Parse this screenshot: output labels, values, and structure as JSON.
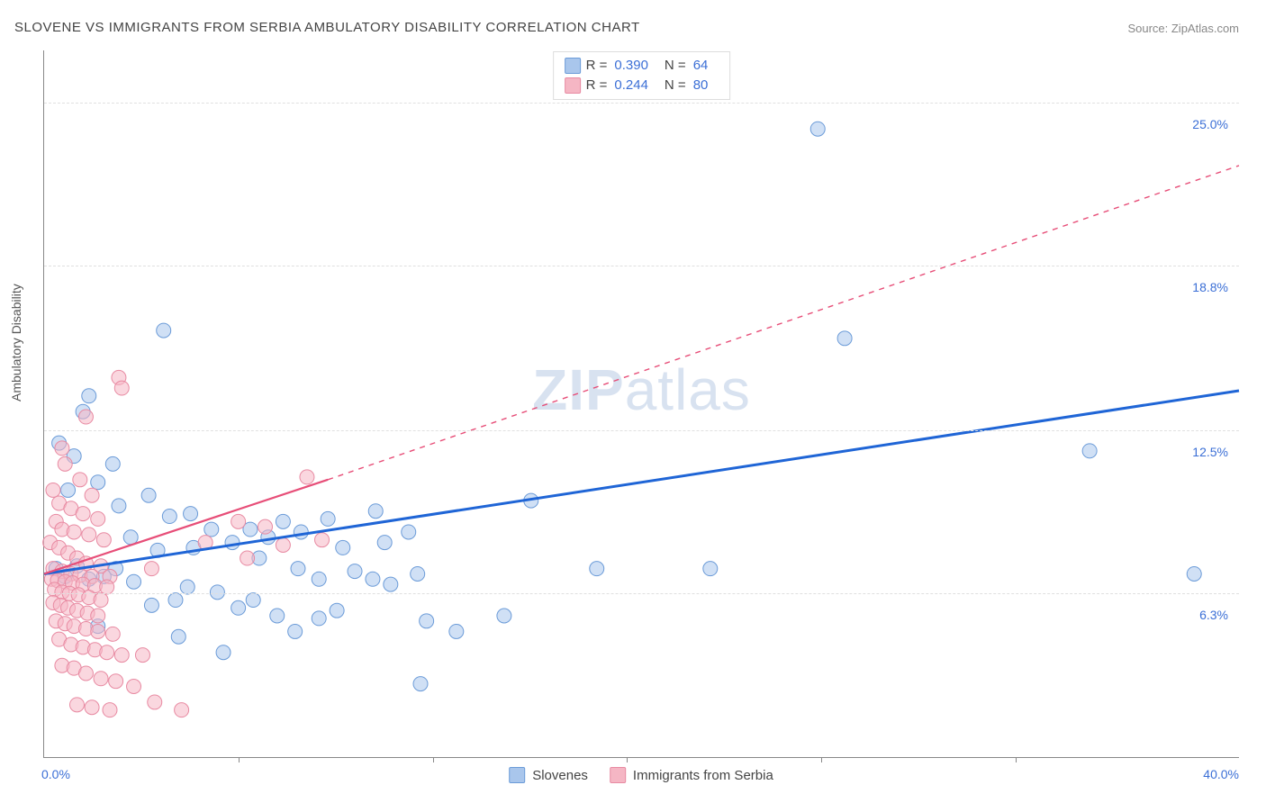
{
  "title": "SLOVENE VS IMMIGRANTS FROM SERBIA AMBULATORY DISABILITY CORRELATION CHART",
  "source": "Source: ZipAtlas.com",
  "y_axis_label": "Ambulatory Disability",
  "watermark_bold": "ZIP",
  "watermark_rest": "atlas",
  "chart": {
    "type": "scatter",
    "xlim": [
      0,
      40
    ],
    "ylim": [
      0,
      27
    ],
    "yticks": [
      {
        "val": 6.3,
        "label": "6.3%"
      },
      {
        "val": 12.5,
        "label": "12.5%"
      },
      {
        "val": 18.8,
        "label": "18.8%"
      },
      {
        "val": 25.0,
        "label": "25.0%"
      }
    ],
    "xticks_minor": [
      6.5,
      13,
      19.5,
      26,
      32.5
    ],
    "xtick_left": "0.0%",
    "xtick_right": "40.0%",
    "grid_color": "#e0e0e0",
    "axis_color": "#888888",
    "background_color": "#ffffff",
    "tick_label_color": "#3b6fd6",
    "marker_radius": 8,
    "marker_opacity": 0.55,
    "series": [
      {
        "name": "Slovenes",
        "fill": "#a9c6ec",
        "stroke": "#6b9bd8",
        "line_color": "#1f65d6",
        "line_width": 3,
        "line_dash": "none",
        "regression": {
          "x1": 0,
          "y1": 7.0,
          "x2": 40,
          "y2": 14.0
        },
        "extrapolate": null,
        "R": "0.390",
        "N": "64",
        "points": [
          [
            25.9,
            24.0
          ],
          [
            26.8,
            16.0
          ],
          [
            35.0,
            11.7
          ],
          [
            16.3,
            9.8
          ],
          [
            4.0,
            16.3
          ],
          [
            1.3,
            13.2
          ],
          [
            1.5,
            13.8
          ],
          [
            0.5,
            12.0
          ],
          [
            2.3,
            11.2
          ],
          [
            1.0,
            11.5
          ],
          [
            1.8,
            10.5
          ],
          [
            3.5,
            10.0
          ],
          [
            2.5,
            9.6
          ],
          [
            0.8,
            10.2
          ],
          [
            4.2,
            9.2
          ],
          [
            4.9,
            9.3
          ],
          [
            5.6,
            8.7
          ],
          [
            5.0,
            8.0
          ],
          [
            3.8,
            7.9
          ],
          [
            2.9,
            8.4
          ],
          [
            6.3,
            8.2
          ],
          [
            6.9,
            8.7
          ],
          [
            7.5,
            8.4
          ],
          [
            7.2,
            7.6
          ],
          [
            8.0,
            9.0
          ],
          [
            8.5,
            7.2
          ],
          [
            8.6,
            8.6
          ],
          [
            9.2,
            6.8
          ],
          [
            9.5,
            9.1
          ],
          [
            10.0,
            8.0
          ],
          [
            10.4,
            7.1
          ],
          [
            11.0,
            6.8
          ],
          [
            11.1,
            9.4
          ],
          [
            11.4,
            8.2
          ],
          [
            11.6,
            6.6
          ],
          [
            12.2,
            8.6
          ],
          [
            12.5,
            7.0
          ],
          [
            18.5,
            7.2
          ],
          [
            22.3,
            7.2
          ],
          [
            38.5,
            7.0
          ],
          [
            0.4,
            7.2
          ],
          [
            0.7,
            6.9
          ],
          [
            1.1,
            7.3
          ],
          [
            1.5,
            6.8
          ],
          [
            2.0,
            6.9
          ],
          [
            2.4,
            7.2
          ],
          [
            3.0,
            6.7
          ],
          [
            3.6,
            5.8
          ],
          [
            4.8,
            6.5
          ],
          [
            4.4,
            6.0
          ],
          [
            5.8,
            6.3
          ],
          [
            6.5,
            5.7
          ],
          [
            7.0,
            6.0
          ],
          [
            7.8,
            5.4
          ],
          [
            8.4,
            4.8
          ],
          [
            9.2,
            5.3
          ],
          [
            9.8,
            5.6
          ],
          [
            12.8,
            5.2
          ],
          [
            13.8,
            4.8
          ],
          [
            15.4,
            5.4
          ],
          [
            12.6,
            2.8
          ],
          [
            6.0,
            4.0
          ],
          [
            4.5,
            4.6
          ],
          [
            1.8,
            5.0
          ]
        ]
      },
      {
        "name": "Immigrants from Serbia",
        "fill": "#f5b6c4",
        "stroke": "#e88aa2",
        "line_color": "#e74e78",
        "line_width": 2.2,
        "line_dash": "none",
        "regression": {
          "x1": 0,
          "y1": 7.0,
          "x2": 9.5,
          "y2": 10.6
        },
        "extrapolate": {
          "x1": 9.5,
          "y1": 10.6,
          "x2": 40,
          "y2": 22.6,
          "dash": "6,6"
        },
        "R": "0.244",
        "N": "80",
        "points": [
          [
            2.5,
            14.5
          ],
          [
            2.6,
            14.1
          ],
          [
            1.4,
            13.0
          ],
          [
            0.6,
            11.8
          ],
          [
            0.7,
            11.2
          ],
          [
            1.2,
            10.6
          ],
          [
            0.3,
            10.2
          ],
          [
            1.6,
            10.0
          ],
          [
            0.5,
            9.7
          ],
          [
            0.9,
            9.5
          ],
          [
            1.3,
            9.3
          ],
          [
            1.8,
            9.1
          ],
          [
            0.4,
            9.0
          ],
          [
            0.6,
            8.7
          ],
          [
            1.0,
            8.6
          ],
          [
            1.5,
            8.5
          ],
          [
            2.0,
            8.3
          ],
          [
            0.2,
            8.2
          ],
          [
            0.5,
            8.0
          ],
          [
            0.8,
            7.8
          ],
          [
            1.1,
            7.6
          ],
          [
            1.4,
            7.4
          ],
          [
            1.9,
            7.3
          ],
          [
            0.3,
            7.2
          ],
          [
            0.6,
            7.1
          ],
          [
            0.9,
            7.0
          ],
          [
            1.2,
            6.95
          ],
          [
            1.6,
            6.9
          ],
          [
            2.2,
            6.9
          ],
          [
            0.25,
            6.8
          ],
          [
            0.45,
            6.75
          ],
          [
            0.7,
            6.7
          ],
          [
            0.95,
            6.65
          ],
          [
            1.3,
            6.6
          ],
          [
            1.7,
            6.55
          ],
          [
            2.1,
            6.5
          ],
          [
            0.35,
            6.4
          ],
          [
            0.6,
            6.3
          ],
          [
            0.85,
            6.25
          ],
          [
            1.15,
            6.2
          ],
          [
            1.5,
            6.1
          ],
          [
            1.9,
            6.0
          ],
          [
            0.3,
            5.9
          ],
          [
            0.55,
            5.8
          ],
          [
            0.8,
            5.7
          ],
          [
            1.1,
            5.6
          ],
          [
            1.45,
            5.5
          ],
          [
            1.8,
            5.4
          ],
          [
            0.4,
            5.2
          ],
          [
            0.7,
            5.1
          ],
          [
            1.0,
            5.0
          ],
          [
            1.4,
            4.9
          ],
          [
            1.8,
            4.8
          ],
          [
            2.3,
            4.7
          ],
          [
            0.5,
            4.5
          ],
          [
            0.9,
            4.3
          ],
          [
            1.3,
            4.2
          ],
          [
            1.7,
            4.1
          ],
          [
            2.1,
            4.0
          ],
          [
            2.6,
            3.9
          ],
          [
            3.3,
            3.9
          ],
          [
            0.6,
            3.5
          ],
          [
            1.0,
            3.4
          ],
          [
            1.4,
            3.2
          ],
          [
            1.9,
            3.0
          ],
          [
            2.4,
            2.9
          ],
          [
            3.0,
            2.7
          ],
          [
            3.7,
            2.1
          ],
          [
            1.1,
            2.0
          ],
          [
            1.6,
            1.9
          ],
          [
            2.2,
            1.8
          ],
          [
            4.6,
            1.8
          ],
          [
            3.6,
            7.2
          ],
          [
            5.4,
            8.2
          ],
          [
            6.5,
            9.0
          ],
          [
            6.8,
            7.6
          ],
          [
            7.4,
            8.8
          ],
          [
            8.8,
            10.7
          ],
          [
            8.0,
            8.1
          ],
          [
            9.3,
            8.3
          ]
        ]
      }
    ],
    "legend_bottom": [
      {
        "label": "Slovenes",
        "fill": "#a9c6ec",
        "stroke": "#6b9bd8"
      },
      {
        "label": "Immigrants from Serbia",
        "fill": "#f5b6c4",
        "stroke": "#e88aa2"
      }
    ]
  }
}
